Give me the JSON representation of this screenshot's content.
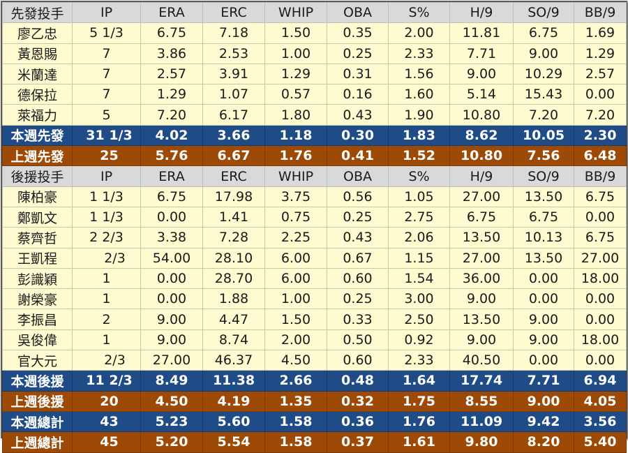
{
  "columns": [
    "IP",
    "ERA",
    "ERC",
    "WHIP",
    "OBA",
    "S%",
    "H/9",
    "SO/9",
    "BB/9"
  ],
  "starters": {
    "header": "先發投手",
    "rows": [
      {
        "name": "廖乙忠",
        "ip": "5 1/3",
        "era": "6.75",
        "erc": "7.18",
        "whip": "1.50",
        "oba": "0.35",
        "s_pct": "2.00",
        "h9": "11.81",
        "so9": "6.75",
        "bb9": "1.69"
      },
      {
        "name": "黃恩賜",
        "ip": "7",
        "era": "3.86",
        "erc": "2.53",
        "whip": "1.00",
        "oba": "0.25",
        "s_pct": "2.33",
        "h9": "7.71",
        "so9": "9.00",
        "bb9": "1.29"
      },
      {
        "name": "米蘭達",
        "ip": "7",
        "era": "2.57",
        "erc": "3.91",
        "whip": "1.29",
        "oba": "0.31",
        "s_pct": "1.56",
        "h9": "9.00",
        "so9": "10.29",
        "bb9": "2.57"
      },
      {
        "name": "德保拉",
        "ip": "7",
        "era": "1.29",
        "erc": "1.07",
        "whip": "0.57",
        "oba": "0.16",
        "s_pct": "1.60",
        "h9": "5.14",
        "so9": "15.43",
        "bb9": "0.00"
      },
      {
        "name": "萊福力",
        "ip": "5",
        "era": "7.20",
        "erc": "6.17",
        "whip": "1.80",
        "oba": "0.43",
        "s_pct": "1.90",
        "h9": "10.80",
        "so9": "7.20",
        "bb9": "7.20"
      }
    ],
    "week_total": {
      "name": "本週先發",
      "ip": "31 1/3",
      "era": "4.02",
      "erc": "3.66",
      "whip": "1.18",
      "oba": "0.30",
      "s_pct": "1.83",
      "h9": "8.62",
      "so9": "10.05",
      "bb9": "2.30"
    },
    "prev_total": {
      "name": "上週先發",
      "ip": "25",
      "era": "5.76",
      "erc": "6.67",
      "whip": "1.76",
      "oba": "0.41",
      "s_pct": "1.52",
      "h9": "10.80",
      "so9": "7.56",
      "bb9": "6.48"
    }
  },
  "relievers": {
    "header": "後援投手",
    "rows": [
      {
        "name": "陳柏豪",
        "ip": "1 1/3",
        "era": "6.75",
        "erc": "17.98",
        "whip": "3.75",
        "oba": "0.56",
        "s_pct": "1.05",
        "h9": "27.00",
        "so9": "13.50",
        "bb9": "6.75"
      },
      {
        "name": "鄭凱文",
        "ip": "1 1/3",
        "era": "0.00",
        "erc": "1.41",
        "whip": "0.75",
        "oba": "0.25",
        "s_pct": "2.75",
        "h9": "6.75",
        "so9": "6.75",
        "bb9": "0.00"
      },
      {
        "name": "蔡齊哲",
        "ip": "2 2/3",
        "era": "3.38",
        "erc": "7.28",
        "whip": "2.25",
        "oba": "0.43",
        "s_pct": "2.06",
        "h9": "13.50",
        "so9": "10.13",
        "bb9": "6.75"
      },
      {
        "name": "王凱程",
        "ip": "2/3",
        "era": "54.00",
        "erc": "28.10",
        "whip": "6.00",
        "oba": "0.67",
        "s_pct": "1.15",
        "h9": "27.00",
        "so9": "13.50",
        "bb9": "27.00"
      },
      {
        "name": "彭識穎",
        "ip": "1",
        "era": "0.00",
        "erc": "28.70",
        "whip": "6.00",
        "oba": "0.60",
        "s_pct": "1.54",
        "h9": "36.00",
        "so9": "0.00",
        "bb9": "18.00"
      },
      {
        "name": "謝榮豪",
        "ip": "1",
        "era": "0.00",
        "erc": "1.88",
        "whip": "1.00",
        "oba": "0.25",
        "s_pct": "3.00",
        "h9": "9.00",
        "so9": "0.00",
        "bb9": "0.00"
      },
      {
        "name": "李振昌",
        "ip": "2",
        "era": "9.00",
        "erc": "4.47",
        "whip": "1.50",
        "oba": "0.33",
        "s_pct": "2.50",
        "h9": "13.50",
        "so9": "9.00",
        "bb9": "0.00"
      },
      {
        "name": "吳俊偉",
        "ip": "1",
        "era": "9.00",
        "erc": "8.74",
        "whip": "2.00",
        "oba": "0.50",
        "s_pct": "0.92",
        "h9": "9.00",
        "so9": "9.00",
        "bb9": "18.00"
      },
      {
        "name": "官大元",
        "ip": "2/3",
        "era": "27.00",
        "erc": "46.37",
        "whip": "4.50",
        "oba": "0.60",
        "s_pct": "2.33",
        "h9": "40.50",
        "so9": "0.00",
        "bb9": "0.00"
      }
    ],
    "week_total": {
      "name": "本週後援",
      "ip": "11 2/3",
      "era": "8.49",
      "erc": "11.38",
      "whip": "2.66",
      "oba": "0.48",
      "s_pct": "1.64",
      "h9": "17.74",
      "so9": "7.71",
      "bb9": "6.94"
    },
    "prev_total": {
      "name": "上週後援",
      "ip": "20",
      "era": "4.50",
      "erc": "4.19",
      "whip": "1.35",
      "oba": "0.32",
      "s_pct": "1.75",
      "h9": "8.55",
      "so9": "9.00",
      "bb9": "4.05"
    }
  },
  "overall": {
    "week_total": {
      "name": "本週總計",
      "ip": "43",
      "era": "5.23",
      "erc": "5.60",
      "whip": "1.58",
      "oba": "0.36",
      "s_pct": "1.76",
      "h9": "11.09",
      "so9": "9.42",
      "bb9": "3.56"
    },
    "prev_total": {
      "name": "上週總計",
      "ip": "45",
      "era": "5.20",
      "erc": "5.54",
      "whip": "1.58",
      "oba": "0.37",
      "s_pct": "1.61",
      "h9": "9.80",
      "so9": "8.20",
      "bb9": "5.40"
    }
  },
  "colors": {
    "header_bg": "#d9d9d9",
    "row_bg": "#fffbd0",
    "week_total_bg": "#1f4c86",
    "prev_total_bg": "#9c4a06"
  }
}
